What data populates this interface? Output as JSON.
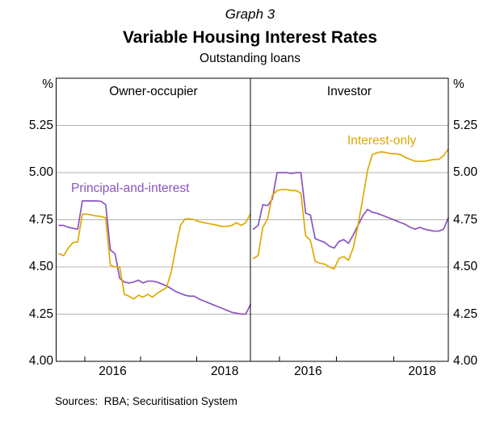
{
  "graph_label": "Graph 3",
  "title": "Variable Housing Interest Rates",
  "subtitle": "Outstanding loans",
  "sources": "Sources:  RBA; Securitisation System",
  "colors": {
    "pi": "#8954c0",
    "io": "#dfa900",
    "grid": "#b3b3b3",
    "axis": "#000000"
  },
  "chart_data": {
    "type": "line",
    "unit": "%",
    "ylim": [
      4.0,
      5.5
    ],
    "yticks": [
      "5.25",
      "5.00",
      "4.75",
      "4.50",
      "4.25",
      "4.00"
    ],
    "ytick_values": [
      5.25,
      5.0,
      4.75,
      4.5,
      4.25,
      4.0
    ],
    "grid_values": [
      4.25,
      4.5,
      4.75,
      5.0,
      5.25
    ],
    "x_year_ticks": [
      2016,
      2017,
      2018
    ],
    "x_year_labels": [
      {
        "label": "2016",
        "pos": 2016.5
      },
      {
        "label": "2018",
        "pos": 2018.5
      }
    ],
    "x_note": "monthly, Jul 2015 - Dec 2018, fractional years",
    "x": [
      2015.542,
      2015.625,
      2015.708,
      2015.792,
      2015.875,
      2015.958,
      2016.042,
      2016.125,
      2016.208,
      2016.292,
      2016.375,
      2016.458,
      2016.542,
      2016.625,
      2016.708,
      2016.792,
      2016.875,
      2016.958,
      2017.042,
      2017.125,
      2017.208,
      2017.292,
      2017.375,
      2017.458,
      2017.542,
      2017.625,
      2017.708,
      2017.792,
      2017.875,
      2017.958,
      2018.042,
      2018.125,
      2018.208,
      2018.292,
      2018.375,
      2018.458,
      2018.542,
      2018.625,
      2018.708,
      2018.792,
      2018.875,
      2018.958
    ],
    "panels": [
      {
        "name": "Owner-occupier",
        "series": [
          {
            "name": "Principal-and-interest",
            "color_key": "pi",
            "values": [
              4.72,
              4.72,
              4.71,
              4.705,
              4.7,
              4.85,
              4.85,
              4.85,
              4.85,
              4.848,
              4.83,
              4.59,
              4.57,
              4.44,
              4.42,
              4.415,
              4.42,
              4.43,
              4.415,
              4.425,
              4.425,
              4.42,
              4.41,
              4.4,
              4.385,
              4.37,
              4.36,
              4.35,
              4.345,
              4.345,
              4.33,
              4.32,
              4.31,
              4.3,
              4.29,
              4.28,
              4.27,
              4.26,
              4.255,
              4.25,
              4.25,
              4.3
            ]
          },
          {
            "name": "Interest-only",
            "color_key": "io",
            "values": [
              4.57,
              4.56,
              4.6,
              4.63,
              4.632,
              4.78,
              4.78,
              4.775,
              4.77,
              4.768,
              4.76,
              4.51,
              4.5,
              4.5,
              4.355,
              4.345,
              4.33,
              4.35,
              4.34,
              4.355,
              4.34,
              4.36,
              4.375,
              4.39,
              4.47,
              4.6,
              4.72,
              4.755,
              4.755,
              4.75,
              4.74,
              4.735,
              4.73,
              4.725,
              4.72,
              4.715,
              4.715,
              4.72,
              4.735,
              4.72,
              4.735,
              4.78
            ]
          }
        ]
      },
      {
        "name": "Investor",
        "series": [
          {
            "name": "Principal-and-interest",
            "color_key": "pi",
            "values": [
              4.7,
              4.72,
              4.83,
              4.825,
              4.86,
              5.0,
              5.0,
              5.0,
              4.995,
              5.0,
              5.0,
              4.785,
              4.775,
              4.65,
              4.64,
              4.63,
              4.61,
              4.6,
              4.635,
              4.645,
              4.625,
              4.67,
              4.72,
              4.77,
              4.805,
              4.79,
              4.785,
              4.775,
              4.765,
              4.755,
              4.745,
              4.735,
              4.725,
              4.71,
              4.7,
              4.71,
              4.7,
              4.695,
              4.69,
              4.69,
              4.7,
              4.76
            ]
          },
          {
            "name": "Interest-only",
            "color_key": "io",
            "values": [
              4.545,
              4.56,
              4.71,
              4.755,
              4.88,
              4.905,
              4.91,
              4.91,
              4.905,
              4.905,
              4.89,
              4.665,
              4.64,
              4.53,
              4.52,
              4.515,
              4.5,
              4.49,
              4.545,
              4.555,
              4.535,
              4.6,
              4.72,
              4.86,
              5.01,
              5.095,
              5.105,
              5.11,
              5.105,
              5.1,
              5.1,
              5.095,
              5.08,
              5.07,
              5.06,
              5.06,
              5.06,
              5.065,
              5.07,
              5.07,
              5.09,
              5.125
            ]
          }
        ]
      }
    ]
  }
}
